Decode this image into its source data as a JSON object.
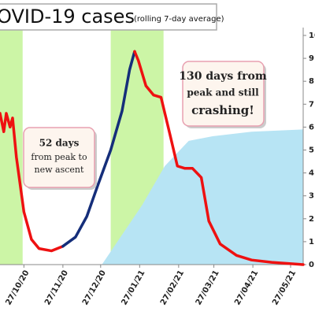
{
  "chart_data": {
    "type": "line",
    "title": "OVID-19 cases",
    "subtitle": "(rolling 7-day average)",
    "xlim": [
      "08/10/20",
      "06/06/21"
    ],
    "xticks": [
      "27/10/20",
      "27/11/20",
      "27/12/20",
      "27/01/21",
      "27/02/21",
      "27/03/21",
      "27/04/21",
      "27/05/21"
    ],
    "ylim": [
      0,
      10
    ],
    "yticks": [
      0,
      1,
      2,
      3,
      4,
      5,
      6,
      7,
      8,
      9,
      10
    ],
    "bands": [
      {
        "start": "08/10/20",
        "end": "26/10/20",
        "color": "#ccf5a6"
      },
      {
        "start": "04/01/21",
        "end": "15/02/21",
        "color": "#ccf5a6"
      }
    ],
    "area": {
      "color": "#b7e4f4",
      "x": [
        "28/12/20",
        "29/01/21",
        "16/02/21",
        "07/03/21",
        "26/03/21",
        "26/04/21",
        "06/06/21"
      ],
      "values": [
        0,
        2.6,
        4.3,
        5.4,
        5.6,
        5.8,
        5.9
      ]
    },
    "series": [
      {
        "color": "#ee1111",
        "x": [
          "08/10/20",
          "11/10/20",
          "13/10/20",
          "16/10/20",
          "18/10/20",
          "21/10/20",
          "27/10/20",
          "02/11/20",
          "08/11/20",
          "18/11/20",
          "27/11/20"
        ],
        "values": [
          6.6,
          5.8,
          6.6,
          6.0,
          6.4,
          4.7,
          2.3,
          1.1,
          0.7,
          0.6,
          0.8
        ]
      },
      {
        "color": "#152e7a",
        "x": [
          "27/11/20",
          "07/12/20",
          "16/12/20",
          "25/12/20",
          "04/01/21",
          "13/01/21",
          "19/01/21",
          "23/01/21"
        ],
        "values": [
          0.8,
          1.2,
          2.1,
          3.5,
          5.0,
          6.7,
          8.5,
          9.3
        ]
      },
      {
        "color": "#ee1111",
        "x": [
          "23/01/21",
          "26/01/21",
          "01/02/21",
          "07/02/21",
          "13/02/21",
          "20/02/21",
          "26/02/21",
          "04/03/21",
          "10/03/21",
          "17/03/21",
          "23/03/21",
          "01/04/21",
          "14/04/21",
          "26/04/21",
          "12/05/21",
          "06/06/21"
        ],
        "values": [
          9.3,
          8.9,
          7.8,
          7.4,
          7.3,
          5.7,
          4.3,
          4.2,
          4.2,
          3.8,
          1.9,
          0.9,
          0.4,
          0.2,
          0.1,
          0
        ]
      }
    ],
    "annotations": [
      {
        "lines": [
          "52 days",
          "from peak to",
          "new ascent"
        ]
      },
      {
        "lines": [
          "130 days from",
          "peak and still",
          "crashing!"
        ]
      }
    ]
  }
}
